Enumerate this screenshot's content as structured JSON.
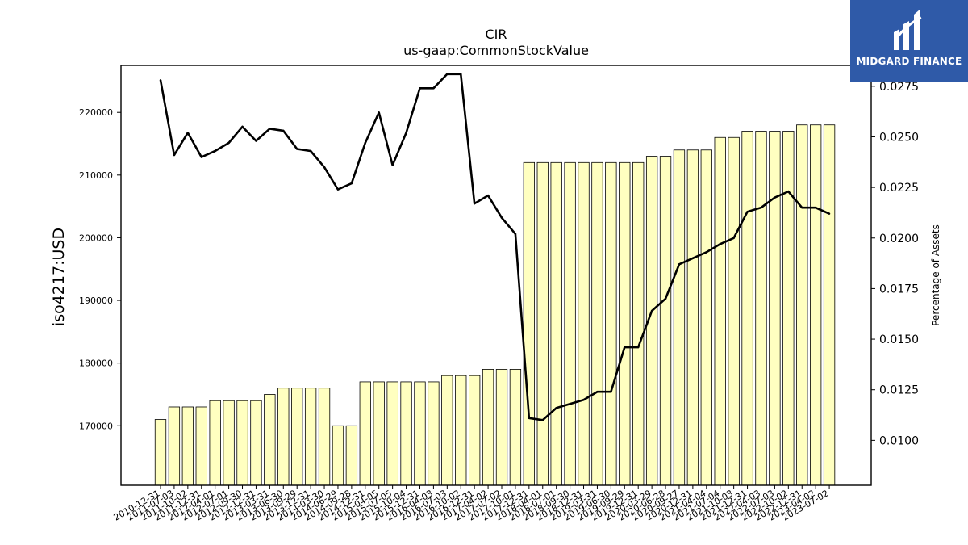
{
  "logo": {
    "text": "MIDGARD FINANCE",
    "bg_color": "#2f5aa8",
    "icon": "midgard-logo-icon"
  },
  "chart_data": {
    "type": "bar",
    "title": "CIR",
    "subtitle": "us-gaap:CommonStockValue",
    "ylabel": "iso4217:USD",
    "y2label": "Percentage of Assets",
    "ylim": [
      160500,
      227500
    ],
    "y2lim": [
      0.00778,
      0.02853
    ],
    "yticks": [
      170000,
      180000,
      190000,
      200000,
      210000,
      220000
    ],
    "y2ticks": [
      0.01,
      0.0125,
      0.015,
      0.0175,
      0.02,
      0.0225,
      0.025,
      0.0275
    ],
    "y2tick_labels": [
      "0.0100",
      "0.0125",
      "0.0150",
      "0.0175",
      "0.0200",
      "0.0225",
      "0.0250",
      "0.0275"
    ],
    "grid": false,
    "bar_color": "#ffffc0",
    "line_color": "#000000",
    "categories": [
      "2010-12-31",
      "2011-07-03",
      "2011-10-02",
      "2011-12-31",
      "2012-04-01",
      "2012-07-01",
      "2012-09-30",
      "2012-12-31",
      "2013-03-31",
      "2013-06-30",
      "2013-09-29",
      "2013-12-31",
      "2014-03-30",
      "2014-06-29",
      "2014-09-28",
      "2014-12-31",
      "2015-04-05",
      "2015-07-05",
      "2015-10-04",
      "2015-12-31",
      "2016-04-03",
      "2016-07-03",
      "2016-10-02",
      "2016-12-31",
      "2017-04-02",
      "2017-07-02",
      "2017-10-01",
      "2017-12-31",
      "2018-04-01",
      "2018-07-01",
      "2018-09-30",
      "2018-12-31",
      "2019-03-31",
      "2019-06-30",
      "2019-09-29",
      "2019-12-31",
      "2020-03-29",
      "2020-06-28",
      "2020-09-27",
      "2020-12-31",
      "2021-04-04",
      "2021-07-04",
      "2021-10-03",
      "2021-12-31",
      "2022-04-03",
      "2022-07-03",
      "2022-10-02",
      "2022-12-31",
      "2023-04-02",
      "2023-07-02"
    ],
    "series": [
      {
        "kind": "bar",
        "axis": "left",
        "values": [
          171000,
          173000,
          173000,
          173000,
          174000,
          174000,
          174000,
          174000,
          175000,
          176000,
          176000,
          176000,
          176000,
          170000,
          170000,
          177000,
          177000,
          177000,
          177000,
          177000,
          177000,
          178000,
          178000,
          178000,
          179000,
          179000,
          179000,
          212000,
          212000,
          212000,
          212000,
          212000,
          212000,
          212000,
          212000,
          212000,
          213000,
          213000,
          214000,
          214000,
          214000,
          216000,
          216000,
          217000,
          217000,
          217000,
          217000,
          218000,
          218000,
          218000
        ]
      },
      {
        "kind": "line",
        "axis": "right",
        "values": [
          0.0278,
          0.0241,
          0.0252,
          0.024,
          0.0243,
          0.0247,
          0.0255,
          0.0248,
          0.0254,
          0.0253,
          0.0244,
          0.0243,
          0.0235,
          0.0224,
          0.0227,
          0.0247,
          0.0262,
          0.0236,
          0.0252,
          0.0274,
          0.0274,
          0.0281,
          0.0281,
          0.0217,
          0.0221,
          0.021,
          0.0202,
          0.0111,
          0.011,
          0.0116,
          0.0118,
          0.012,
          0.0124,
          0.0124,
          0.0146,
          0.0146,
          0.0164,
          0.017,
          0.0187,
          0.019,
          0.0193,
          0.0197,
          0.02,
          0.0213,
          0.0215,
          0.022,
          0.0223,
          0.0215,
          0.0215,
          0.0212
        ]
      }
    ]
  }
}
